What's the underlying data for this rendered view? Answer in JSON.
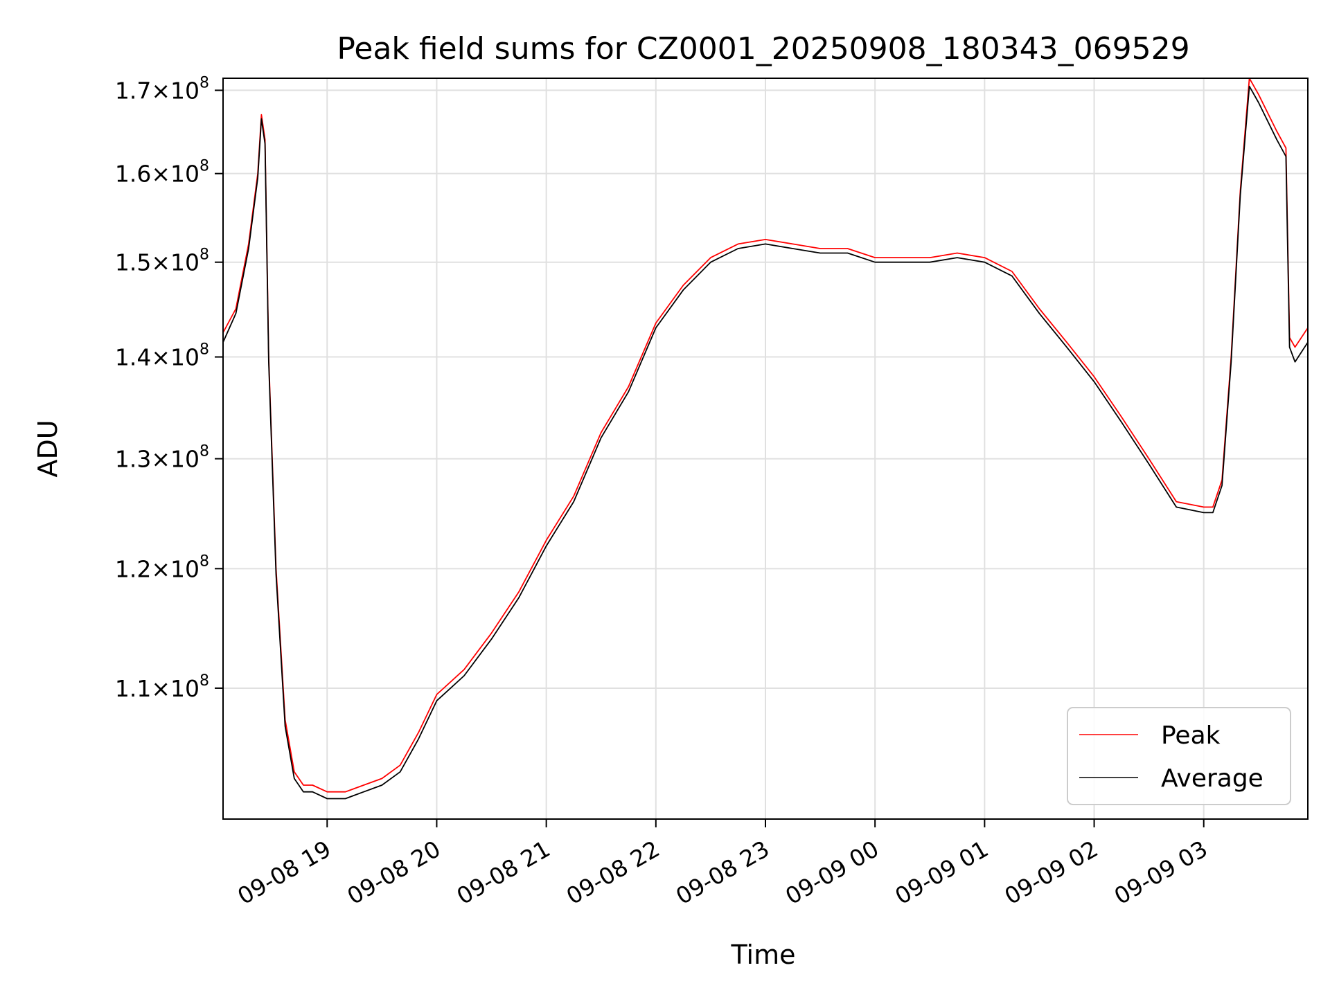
{
  "chart_data": {
    "type": "line",
    "title": "Peak field sums for CZ0001_20250908_180343_069529",
    "xlabel": "Time",
    "ylabel": "ADU",
    "y_scale": "log",
    "ylim": [
      100000000,
      171500000
    ],
    "x_start": "2025-09-08 18:03",
    "x_end": "2025-09-09 03:57",
    "grid": true,
    "legend_position": "lower-right",
    "x_ticks": [
      {
        "time": "2025-09-08 19:00",
        "label": "09-08 19"
      },
      {
        "time": "2025-09-08 20:00",
        "label": "09-08 20"
      },
      {
        "time": "2025-09-08 21:00",
        "label": "09-08 21"
      },
      {
        "time": "2025-09-08 22:00",
        "label": "09-08 22"
      },
      {
        "time": "2025-09-08 23:00",
        "label": "09-08 23"
      },
      {
        "time": "2025-09-09 00:00",
        "label": "09-09 00"
      },
      {
        "time": "2025-09-09 01:00",
        "label": "09-09 01"
      },
      {
        "time": "2025-09-09 02:00",
        "label": "09-09 02"
      },
      {
        "time": "2025-09-09 03:00",
        "label": "09-09 03"
      }
    ],
    "y_ticks": [
      {
        "value": 110000000,
        "mantissa": "1.1",
        "base": "10",
        "exponent": "8"
      },
      {
        "value": 120000000,
        "mantissa": "1.2",
        "base": "10",
        "exponent": "8"
      },
      {
        "value": 130000000,
        "mantissa": "1.3",
        "base": "10",
        "exponent": "8"
      },
      {
        "value": 140000000,
        "mantissa": "1.4",
        "base": "10",
        "exponent": "8"
      },
      {
        "value": 150000000,
        "mantissa": "1.5",
        "base": "10",
        "exponent": "8"
      },
      {
        "value": 160000000,
        "mantissa": "1.6",
        "base": "10",
        "exponent": "8"
      },
      {
        "value": 170000000,
        "mantissa": "1.7",
        "base": "10",
        "exponent": "8"
      }
    ],
    "x": [
      "2025-09-08 18:03",
      "2025-09-08 18:10",
      "2025-09-08 18:17",
      "2025-09-08 18:22",
      "2025-09-08 18:24",
      "2025-09-08 18:26",
      "2025-09-08 18:28",
      "2025-09-08 18:32",
      "2025-09-08 18:37",
      "2025-09-08 18:42",
      "2025-09-08 18:47",
      "2025-09-08 18:52",
      "2025-09-08 19:00",
      "2025-09-08 19:10",
      "2025-09-08 19:20",
      "2025-09-08 19:30",
      "2025-09-08 19:40",
      "2025-09-08 19:50",
      "2025-09-08 20:00",
      "2025-09-08 20:15",
      "2025-09-08 20:30",
      "2025-09-08 20:45",
      "2025-09-08 21:00",
      "2025-09-08 21:15",
      "2025-09-08 21:30",
      "2025-09-08 21:45",
      "2025-09-08 22:00",
      "2025-09-08 22:15",
      "2025-09-08 22:30",
      "2025-09-08 22:45",
      "2025-09-08 23:00",
      "2025-09-08 23:15",
      "2025-09-08 23:30",
      "2025-09-08 23:45",
      "2025-09-09 00:00",
      "2025-09-09 00:15",
      "2025-09-09 00:30",
      "2025-09-09 00:45",
      "2025-09-09 01:00",
      "2025-09-09 01:15",
      "2025-09-09 01:30",
      "2025-09-09 01:45",
      "2025-09-09 02:00",
      "2025-09-09 02:15",
      "2025-09-09 02:30",
      "2025-09-09 02:45",
      "2025-09-09 03:00",
      "2025-09-09 03:05",
      "2025-09-09 03:10",
      "2025-09-09 03:15",
      "2025-09-09 03:20",
      "2025-09-09 03:25",
      "2025-09-09 03:30",
      "2025-09-09 03:40",
      "2025-09-09 03:45",
      "2025-09-09 03:47",
      "2025-09-09 03:50",
      "2025-09-09 03:57"
    ],
    "series": [
      {
        "name": "Peak",
        "color": "#ff0000",
        "values": [
          142500000,
          145000000,
          152000000,
          160000000,
          167000000,
          164000000,
          140000000,
          120000000,
          107500000,
          103500000,
          102500000,
          102500000,
          102000000,
          102000000,
          102500000,
          103000000,
          104000000,
          106500000,
          109500000,
          111500000,
          114500000,
          118000000,
          122500000,
          126500000,
          132500000,
          137000000,
          143500000,
          147500000,
          150500000,
          152000000,
          152500000,
          152000000,
          151500000,
          151500000,
          150500000,
          150500000,
          150500000,
          151000000,
          150500000,
          149000000,
          145000000,
          141500000,
          138000000,
          134000000,
          130000000,
          126000000,
          125500000,
          125500000,
          128000000,
          140000000,
          158000000,
          171500000,
          169500000,
          165000000,
          163000000,
          142000000,
          141000000,
          143000000
        ]
      },
      {
        "name": "Average",
        "color": "#000000",
        "values": [
          141500000,
          144500000,
          151500000,
          159500000,
          166500000,
          163500000,
          139500000,
          119500000,
          107000000,
          103000000,
          102000000,
          102000000,
          101500000,
          101500000,
          102000000,
          102500000,
          103500000,
          106000000,
          109000000,
          111000000,
          114000000,
          117500000,
          122000000,
          126000000,
          132000000,
          136500000,
          143000000,
          147000000,
          150000000,
          151500000,
          152000000,
          151500000,
          151000000,
          151000000,
          150000000,
          150000000,
          150000000,
          150500000,
          150000000,
          148500000,
          144500000,
          141000000,
          137500000,
          133500000,
          129500000,
          125500000,
          125000000,
          125000000,
          127500000,
          139500000,
          157500000,
          170500000,
          168500000,
          164000000,
          162000000,
          141000000,
          139500000,
          141500000
        ]
      }
    ]
  }
}
